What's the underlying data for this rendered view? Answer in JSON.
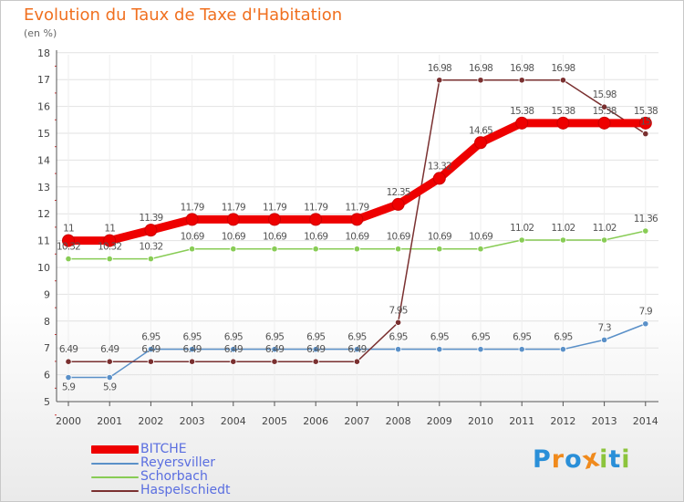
{
  "header": {
    "title": "Evolution du Taux de Taxe d'Habitation",
    "subtitle": "(en %)"
  },
  "chart_data": {
    "type": "line",
    "categories": [
      "2000",
      "2001",
      "2002",
      "2003",
      "2004",
      "2005",
      "2006",
      "2007",
      "2008",
      "2009",
      "2010",
      "2011",
      "2012",
      "2013",
      "2014"
    ],
    "ylim": [
      5,
      18
    ],
    "yticks": [
      5,
      6,
      7,
      8,
      9,
      10,
      11,
      12,
      13,
      14,
      15,
      16,
      17,
      18
    ],
    "grid": true,
    "legend_position": "bottom-left",
    "series": [
      {
        "name": "BITCHE",
        "color": "#ee0000",
        "values": [
          11,
          11,
          11.39,
          11.79,
          11.79,
          11.79,
          11.79,
          11.79,
          12.35,
          13.32,
          14.65,
          15.38,
          15.38,
          15.38,
          15.38
        ],
        "labels": [
          "11",
          "11",
          "11.39",
          "11.79",
          "11.79",
          "11.79",
          "11.79",
          "11.79",
          "12.35",
          "13.32",
          "14.65",
          "15.38",
          "15.38",
          "15.38",
          "15.38"
        ]
      },
      {
        "name": "Reyersviller",
        "color": "#5a90c8",
        "values": [
          5.9,
          5.9,
          6.95,
          6.95,
          6.95,
          6.95,
          6.95,
          6.95,
          6.95,
          6.95,
          6.95,
          6.95,
          6.95,
          7.3,
          7.9
        ],
        "labels": [
          "5.9",
          "5.9",
          "6.95",
          "6.95",
          "6.95",
          "6.95",
          "6.95",
          "6.95",
          "6.95",
          "6.95",
          "6.95",
          "6.95",
          "6.95",
          "7.3",
          "7.9"
        ]
      },
      {
        "name": "Schorbach",
        "color": "#88cc55",
        "values": [
          10.32,
          10.32,
          10.32,
          10.69,
          10.69,
          10.69,
          10.69,
          10.69,
          10.69,
          10.69,
          10.69,
          11.02,
          11.02,
          11.02,
          11.36
        ],
        "labels": [
          "10.32",
          "10.32",
          "10.32",
          "10.69",
          "10.69",
          "10.69",
          "10.69",
          "10.69",
          "10.69",
          "10.69",
          "10.69",
          "11.02",
          "11.02",
          "11.02",
          "11.36"
        ]
      },
      {
        "name": "Haspelschiedt",
        "color": "#7a3030",
        "values": [
          6.49,
          6.49,
          6.49,
          6.49,
          6.49,
          6.49,
          6.49,
          6.49,
          7.95,
          16.98,
          16.98,
          16.98,
          16.98,
          15.98,
          14.98
        ],
        "labels": [
          "6.49",
          "6.49",
          "6.49",
          "6.49",
          "6.49",
          "6.49",
          "6.49",
          "6.49",
          "7.95",
          "16.98",
          "16.98",
          "16.98",
          "16.98",
          "15.98",
          "15"
        ]
      }
    ]
  },
  "logo": {
    "letters": [
      "P",
      "r",
      "o",
      "x",
      "i",
      "t",
      "i"
    ],
    "colors": [
      "#2a8fd8",
      "#f08a1c",
      "#2a8fd8",
      "#f08a1c",
      "#8cc43c",
      "#2a8fd8",
      "#8cc43c"
    ]
  }
}
